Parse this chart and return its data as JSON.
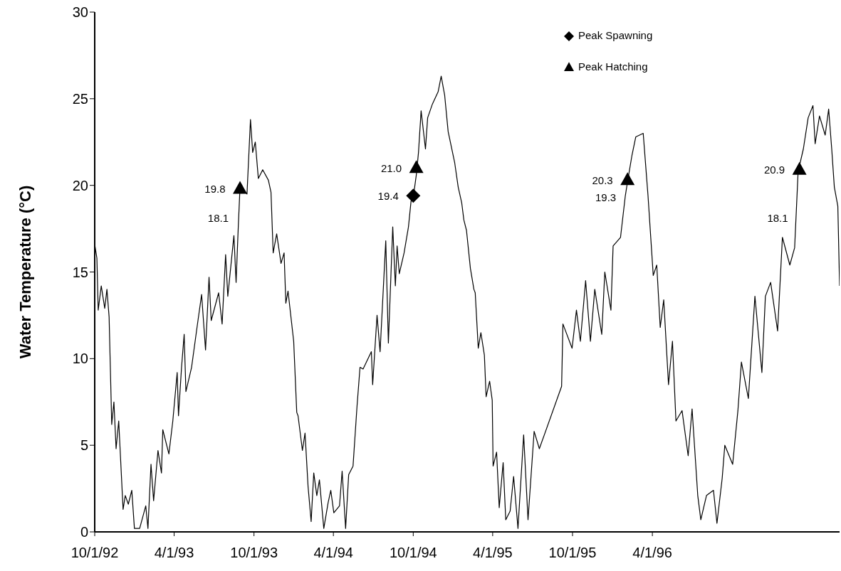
{
  "chart_data": {
    "type": "line",
    "ylabel": "Water Temperature (°C)",
    "xlim": [
      "1992-10-01",
      "1997-06-04"
    ],
    "xticks": [
      {
        "value": "1992-10-01",
        "label": "10/1/92"
      },
      {
        "value": "1993-04-01",
        "label": "4/1/93"
      },
      {
        "value": "1993-10-01",
        "label": "10/1/93"
      },
      {
        "value": "1994-04-01",
        "label": "4/1/94"
      },
      {
        "value": "1994-10-01",
        "label": "10/1/94"
      },
      {
        "value": "1995-04-01",
        "label": "4/1/95"
      },
      {
        "value": "1995-10-01",
        "label": "10/1/95"
      },
      {
        "value": "1996-04-01",
        "label": "4/1/96"
      }
    ],
    "ylim": [
      0,
      30
    ],
    "yticks": [
      0,
      5,
      10,
      15,
      20,
      25,
      30
    ],
    "grid": false,
    "legend": "top right",
    "series": [
      {
        "color": "#000000",
        "x": [
          "1992-10-01",
          "1992-10-06",
          "1992-10-09",
          "1992-10-16",
          "1992-10-24",
          "1992-10-29",
          "1992-11-03",
          "1992-11-09",
          "1992-11-14",
          "1992-11-19",
          "1992-11-25",
          "1992-12-05",
          "1992-12-10",
          "1992-12-17",
          "1992-12-25",
          "1992-12-31",
          "1993-01-12",
          "1993-01-26",
          "1993-01-31",
          "1993-02-07",
          "1993-02-13",
          "1993-02-23",
          "1993-03-03",
          "1993-03-06",
          "1993-03-20",
          "1993-03-29",
          "1993-04-08",
          "1993-04-11",
          "1993-04-18",
          "1993-04-24",
          "1993-04-28",
          "1993-05-11",
          "1993-05-24",
          "1993-06-03",
          "1993-06-12",
          "1993-06-20",
          "1993-06-25",
          "1993-07-12",
          "1993-07-20",
          "1993-07-28",
          "1993-08-02",
          "1993-08-16",
          "1993-08-21",
          "1993-08-26",
          "1993-08-30",
          "1993-09-15",
          "1993-09-23",
          "1993-09-28",
          "1993-10-04",
          "1993-10-11",
          "1993-10-21",
          "1993-11-03",
          "1993-11-09",
          "1993-11-14",
          "1993-11-22",
          "1993-12-02",
          "1993-12-09",
          "1993-12-13",
          "1993-12-18",
          "1993-12-31",
          "1994-01-07",
          "1994-01-10",
          "1994-01-20",
          "1994-01-26",
          "1994-02-02",
          "1994-02-09",
          "1994-02-15",
          "1994-02-22",
          "1994-02-28",
          "1994-03-10",
          "1994-03-20",
          "1994-03-26",
          "1994-04-02",
          "1994-04-15",
          "1994-04-21",
          "1994-04-29",
          "1994-05-06",
          "1994-05-16",
          "1994-05-25",
          "1994-06-01",
          "1994-06-08",
          "1994-06-27",
          "1994-06-30",
          "1994-07-10",
          "1994-07-17",
          "1994-07-30",
          "1994-08-05",
          "1994-08-15",
          "1994-08-21",
          "1994-08-25",
          "1994-08-30",
          "1994-09-10",
          "1994-09-20",
          "1994-09-26",
          "1994-10-01",
          "1994-10-08",
          "1994-10-13",
          "1994-10-19",
          "1994-10-29",
          "1994-11-03",
          "1994-11-14",
          "1994-11-27",
          "1994-12-04",
          "1994-12-12",
          "1994-12-20",
          "1995-01-04",
          "1995-01-12",
          "1995-01-20",
          "1995-01-25",
          "1995-01-31",
          "1995-02-09",
          "1995-02-17",
          "1995-02-20",
          "1995-02-27",
          "1995-03-05",
          "1995-03-13",
          "1995-03-17",
          "1995-03-25",
          "1995-03-31",
          "1995-04-02",
          "1995-04-10",
          "1995-04-16",
          "1995-04-25",
          "1995-05-01",
          "1995-05-11",
          "1995-05-19",
          "1995-05-29",
          "1995-06-11",
          "1995-06-21",
          "1995-07-05",
          "1995-07-17",
          "1995-09-06",
          "1995-09-09",
          "1995-09-30",
          "1995-10-10",
          "1995-10-19",
          "1995-10-31",
          "1995-11-11",
          "1995-11-21",
          "1995-12-07",
          "1995-12-14",
          "1995-12-28",
          "1996-01-02",
          "1996-01-19",
          "1996-01-30",
          "1996-02-04",
          "1996-02-14",
          "1996-02-23",
          "1996-03-11",
          "1996-03-22",
          "1996-04-03",
          "1996-04-11",
          "1996-04-19",
          "1996-04-27",
          "1996-05-08",
          "1996-05-17",
          "1996-05-25",
          "1996-06-08",
          "1996-06-22",
          "1996-07-01",
          "1996-07-14",
          "1996-07-21",
          "1996-08-03",
          "1996-08-19",
          "1996-08-27",
          "1996-09-08",
          "1996-09-14",
          "1996-10-02",
          "1996-10-14",
          "1996-10-22",
          "1996-11-07",
          "1996-11-22",
          "1996-12-08",
          "1996-12-16",
          "1996-12-28",
          "1997-01-13",
          "1997-01-24",
          "1997-02-10",
          "1997-02-21",
          "1997-03-01",
          "1997-03-13",
          "1997-03-24",
          "1997-04-04",
          "1997-04-09",
          "1997-04-19",
          "1997-05-02",
          "1997-05-10",
          "1997-05-17",
          "1997-05-23",
          "1997-05-31",
          "1997-06-04"
        ],
        "values": [
          16.6,
          15.8,
          12.8,
          14.2,
          12.9,
          14.0,
          12.4,
          6.2,
          7.5,
          4.8,
          6.4,
          1.3,
          2.1,
          1.6,
          2.4,
          0.2,
          0.2,
          1.5,
          0.2,
          3.9,
          1.8,
          4.7,
          3.4,
          5.9,
          4.5,
          6.4,
          9.2,
          6.7,
          9.5,
          11.4,
          8.1,
          9.5,
          11.9,
          13.7,
          10.5,
          14.7,
          12.2,
          13.8,
          12.0,
          16.0,
          13.6,
          17.1,
          14.4,
          17.6,
          19.9,
          19.5,
          23.8,
          21.9,
          22.5,
          20.4,
          20.9,
          20.3,
          19.6,
          16.1,
          17.2,
          15.5,
          16.1,
          13.2,
          13.9,
          11.0,
          6.9,
          6.7,
          4.7,
          5.7,
          2.6,
          0.6,
          3.4,
          2.1,
          3.0,
          0.2,
          1.7,
          2.4,
          1.1,
          1.5,
          3.5,
          0.2,
          3.3,
          3.8,
          7.2,
          9.5,
          9.4,
          10.4,
          8.5,
          12.5,
          10.4,
          16.8,
          10.9,
          17.6,
          14.2,
          16.5,
          14.9,
          16.1,
          17.6,
          19.1,
          19.3,
          20.6,
          21.9,
          24.3,
          22.1,
          23.9,
          24.7,
          25.4,
          26.3,
          25.2,
          23.1,
          21.3,
          19.9,
          19.0,
          18.0,
          17.4,
          15.2,
          14.0,
          13.8,
          10.6,
          11.5,
          10.2,
          7.8,
          8.7,
          7.6,
          3.8,
          4.6,
          1.4,
          4.0,
          0.7,
          1.2,
          3.2,
          0.2,
          5.6,
          0.7,
          5.8,
          4.8,
          8.4,
          12.0,
          10.6,
          12.8,
          11.0,
          14.5,
          11.0,
          14.0,
          11.4,
          15.0,
          12.8,
          16.5,
          17.0,
          19.4,
          20.2,
          21.7,
          22.8,
          23.0,
          19.4,
          14.8,
          15.4,
          11.8,
          13.4,
          8.5,
          11.0,
          6.4,
          7.0,
          4.4,
          7.1,
          2.1,
          0.7,
          2.1,
          2.4,
          0.5,
          3.1,
          5.0,
          3.9,
          7.0,
          9.8,
          7.7,
          13.6,
          9.2,
          13.6,
          14.4,
          11.6,
          17.0,
          15.4,
          16.4,
          20.8,
          22.1,
          23.9,
          24.6,
          22.4,
          24.0,
          22.9,
          24.4,
          22.1,
          19.9,
          18.8,
          14.2
        ]
      },
      {
        "type": "scatter",
        "name": "Peak Spawning",
        "color": "#000000",
        "marker": "diamond",
        "x": [
          "1994-10-01"
        ],
        "values": [
          19.4
        ],
        "value_labels": [
          "19.4"
        ]
      },
      {
        "type": "scatter",
        "name": "Peak Hatching",
        "color": "#000000",
        "marker": "triangle",
        "x": [
          "1993-08-30",
          "1994-10-08",
          "1996-02-04",
          "1997-03-04"
        ],
        "values": [
          19.8,
          21.0,
          20.3,
          20.9
        ],
        "value_labels": [
          "19.8",
          "21.0",
          "20.3",
          "20.9"
        ]
      }
    ],
    "annotations": [
      {
        "text": "18.1",
        "x": "1993-08-30",
        "y": 18.1
      },
      {
        "text": "19.3",
        "x": "1996-02-04",
        "y": 19.3
      },
      {
        "text": "18.1",
        "x": "1997-03-04",
        "y": 18.1
      }
    ]
  }
}
